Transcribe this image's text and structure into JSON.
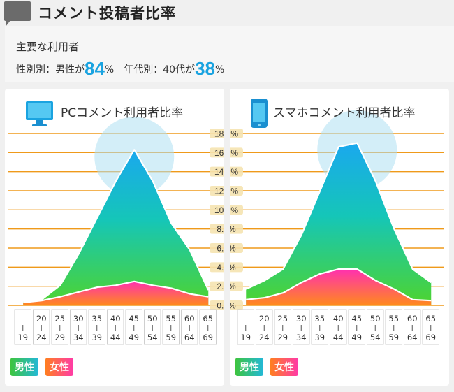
{
  "page": {
    "title": "コメント投稿者比率",
    "summary_label": "主要な利用者",
    "gender_prefix": "性別別：男性が",
    "gender_value": "84",
    "age_prefix": "年代別：40代が",
    "age_value": "38",
    "percent_unit": "%"
  },
  "colors": {
    "accent_blue": "#1aa3e0",
    "grid_orange": "#ef9a1a",
    "male_badge": "#3ec43e",
    "female_badge": "#ff7f1f",
    "female_pink": "#ff3aa8"
  },
  "chart_data": [
    {
      "type": "area",
      "title": "PCコメント利用者比率",
      "icon": "monitor-icon",
      "categories": [
        "-19",
        "20-24",
        "25-29",
        "30-34",
        "35-39",
        "40-44",
        "45-49",
        "50-54",
        "55-59",
        "60-64",
        "65-69"
      ],
      "category_labels": [
        [
          "",
          "19"
        ],
        [
          "20",
          "24"
        ],
        [
          "25",
          "29"
        ],
        [
          "30",
          "34"
        ],
        [
          "35",
          "39"
        ],
        [
          "40",
          "44"
        ],
        [
          "45",
          "49"
        ],
        [
          "50",
          "54"
        ],
        [
          "55",
          "59"
        ],
        [
          "60",
          "64"
        ],
        [
          "65",
          "69"
        ]
      ],
      "series": [
        {
          "name": "男性",
          "values": [
            0.4,
            0.6,
            2.1,
            5.4,
            9.2,
            13.0,
            16.3,
            13.0,
            8.6,
            5.8,
            1.6
          ]
        },
        {
          "name": "女性",
          "values": [
            0.3,
            0.5,
            0.9,
            1.4,
            1.9,
            2.1,
            2.5,
            2.1,
            1.8,
            1.2,
            0.9
          ]
        }
      ],
      "ylim": [
        0,
        18
      ],
      "yticks": [
        "0.0%",
        "2.0%",
        "4.0%",
        "6.0%",
        "8.0%",
        "10.0%",
        "12.0%",
        "14.0%",
        "16.0%",
        "18.0%"
      ],
      "legend": [
        "男性",
        "女性"
      ]
    },
    {
      "type": "area",
      "title": "スマホコメント利用者比率",
      "icon": "smartphone-icon",
      "categories": [
        "-19",
        "20-24",
        "25-29",
        "30-34",
        "35-39",
        "40-44",
        "45-49",
        "50-54",
        "55-59",
        "60-64",
        "65-69"
      ],
      "category_labels": [
        [
          "",
          "19"
        ],
        [
          "20",
          "24"
        ],
        [
          "25",
          "29"
        ],
        [
          "30",
          "34"
        ],
        [
          "35",
          "39"
        ],
        [
          "40",
          "44"
        ],
        [
          "45",
          "49"
        ],
        [
          "50",
          "54"
        ],
        [
          "55",
          "59"
        ],
        [
          "60",
          "64"
        ],
        [
          "65",
          "69"
        ]
      ],
      "series": [
        {
          "name": "男性",
          "values": [
            1.7,
            2.6,
            3.8,
            7.4,
            12.0,
            16.6,
            17.0,
            13.0,
            8.0,
            3.8,
            2.4
          ]
        },
        {
          "name": "女性",
          "values": [
            0.6,
            0.8,
            1.3,
            2.4,
            3.3,
            3.8,
            3.8,
            2.6,
            1.7,
            0.6,
            0.5
          ]
        }
      ],
      "ylim": [
        0,
        18
      ],
      "yticks": [
        "0.0%",
        "2.0%",
        "4.0%",
        "6.0%",
        "8.0%",
        "10.0%",
        "12.0%",
        "14.0%",
        "16.0%",
        "18.0%"
      ],
      "legend": [
        "男性",
        "女性"
      ]
    }
  ]
}
